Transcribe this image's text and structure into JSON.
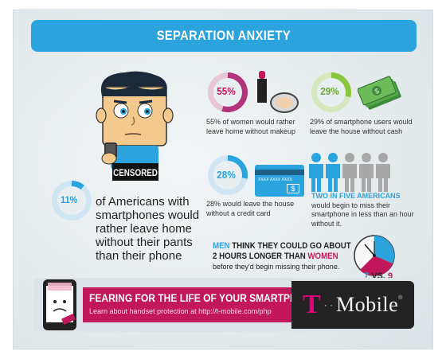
{
  "title": "SEPARATION ANXIETY",
  "censored_label": "CENSORED",
  "stats": {
    "americans": {
      "pct": "11%",
      "value": 0.11,
      "text": "of Americans with smartphones would rather leave home without their pants than their phone"
    },
    "women": {
      "pct": "55%",
      "value": 0.55,
      "text": "55% of women would rather leave home without makeup"
    },
    "cash": {
      "pct": "29%",
      "value": 0.29,
      "text": "29% of smartphone users would leave the house without cash"
    },
    "credit": {
      "pct": "28%",
      "value": 0.28,
      "text": "28% would leave the house without a credit card"
    }
  },
  "credit_card": {
    "number": "XXXX XXXX XXXX",
    "amount": "$"
  },
  "two_in_five": {
    "highlight": "TWO IN FIVE AMERICANS",
    "text": "would begin to miss their smartphone in less than an hour without it."
  },
  "men_women": {
    "men": "MEN",
    "line1": "THINK THEY COULD GO ABOUT",
    "line2": "2 HOURS LONGER THAN",
    "women": "WOMEN",
    "line3": "before they'd begin missing their phone.",
    "vs_left": "7",
    "vs_mid": "VS.",
    "vs_right": "9"
  },
  "footer": {
    "headline": "FEARING FOR THE LIFE OF YOUR SMARTPHONE?",
    "sub": "Learn about handset protection at http://t-mobile.com/php",
    "logo_t": "T",
    "logo_dots": "· ·",
    "logo_mobile": "Mobile",
    "logo_reg": "®"
  },
  "colors": {
    "blue": "#2ba3dc",
    "pink": "#c2185b",
    "green": "#8cc63f",
    "magenta": "#e2007a"
  }
}
